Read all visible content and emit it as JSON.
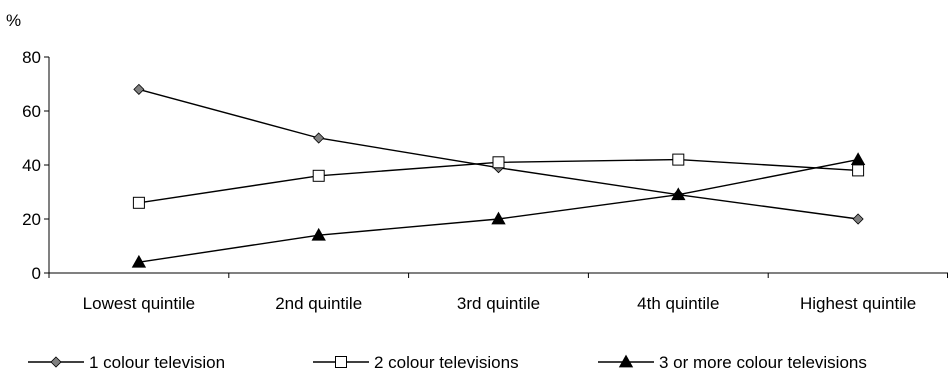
{
  "chart_data": {
    "type": "line",
    "y_unit_label": "%",
    "ylim": [
      0,
      80
    ],
    "yticks": [
      0,
      20,
      40,
      60,
      80
    ],
    "grid": false,
    "legend_position": "bottom",
    "categories": [
      "Lowest quintile",
      "2nd quintile",
      "3rd quintile",
      "4th quintile",
      "Highest quintile"
    ],
    "series": [
      {
        "name": "1 colour television",
        "marker": "diamond",
        "values": [
          68,
          50,
          39,
          29,
          20
        ]
      },
      {
        "name": "2 colour televisions",
        "marker": "square",
        "values": [
          26,
          36,
          41,
          42,
          38
        ]
      },
      {
        "name": "3 or more colour televisions",
        "marker": "triangle",
        "values": [
          4,
          14,
          20,
          29,
          42
        ]
      }
    ]
  },
  "colors": {
    "line": "#000000",
    "diamond_fill": "#808080",
    "square_fill": "#ffffff",
    "triangle_fill": "#000000"
  }
}
